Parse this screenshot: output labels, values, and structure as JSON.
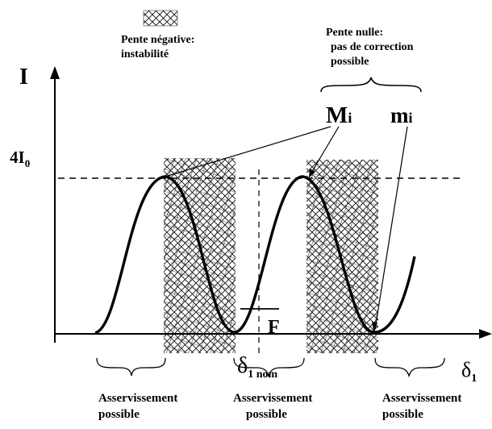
{
  "legend": {
    "title_line1": "Pente négative:",
    "title_line2": "instabilité"
  },
  "zero_slope": {
    "line1": "Pente nulle:",
    "line2": "pas de correction",
    "line3": "possible"
  },
  "axes": {
    "y_label": "I",
    "y_tick_main": "4I",
    "y_tick_sub": "0",
    "x_label_main": "δ",
    "x_label_sub": "1"
  },
  "markers": {
    "max_main": "M",
    "max_sub": "i",
    "min_main": "m",
    "min_sub": "i",
    "point_f": "F",
    "nominal_main": "δ",
    "nominal_sub": "1 nom"
  },
  "zones": [
    {
      "line1": "Asservissement",
      "line2": "possible"
    },
    {
      "line1": "Asservissement",
      "line2": "possible"
    },
    {
      "line1": "Asservissement",
      "line2": "possible"
    }
  ]
}
